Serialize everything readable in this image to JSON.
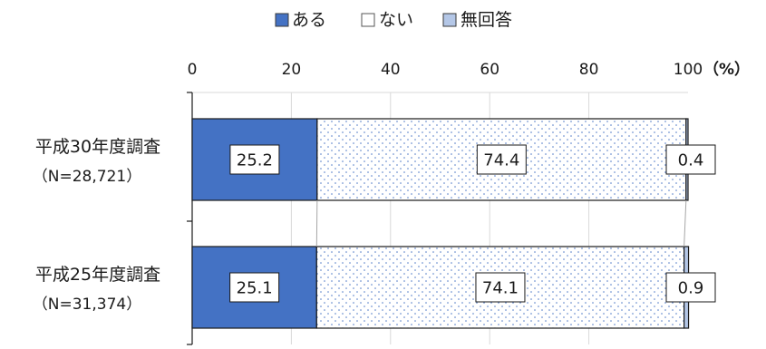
{
  "chart_data": {
    "type": "bar",
    "orientation": "horizontal",
    "stacked": true,
    "unit": "（%）",
    "xlim": [
      0,
      100
    ],
    "xticks": [
      "0",
      "20",
      "40",
      "60",
      "80",
      "100"
    ],
    "grid": true,
    "legend_placement": "top",
    "categories": [
      {
        "line1": "平成30年度調査",
        "line2": "（N=28,721）"
      },
      {
        "line1": "平成25年度調査",
        "line2": "（N=31,374）"
      }
    ],
    "series": [
      {
        "name": "ある",
        "values": [
          25.2,
          25.1
        ],
        "labels": [
          "25.2",
          "25.1"
        ],
        "color": "#4472C4",
        "pattern": "solid"
      },
      {
        "name": "ない",
        "values": [
          74.4,
          74.1
        ],
        "labels": [
          "74.4",
          "74.1"
        ],
        "color": "#4472C4",
        "pattern": "dots"
      },
      {
        "name": "無回答",
        "values": [
          0.4,
          0.9
        ],
        "labels": [
          "0.4",
          "0.9"
        ],
        "color": "#B4C7E7",
        "pattern": "solid"
      }
    ]
  }
}
